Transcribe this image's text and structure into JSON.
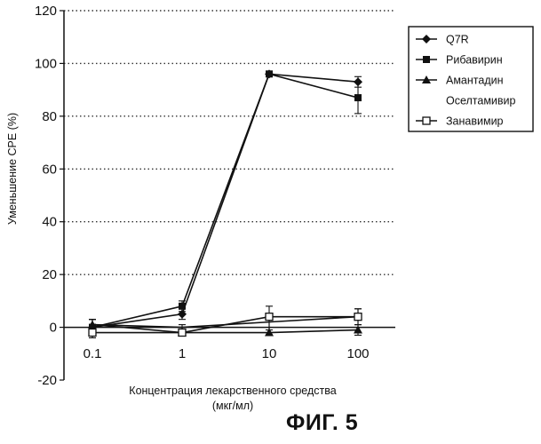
{
  "figure_label": "ФИГ. 5",
  "chart_data": {
    "type": "line",
    "xscale": "log",
    "categories": [
      "0.1",
      "1",
      "10",
      "100"
    ],
    "x": [
      0.1,
      1,
      10,
      100
    ],
    "xlabel": [
      "Концентрация лекарственного средства",
      "(мкг/мл)"
    ],
    "ylabel": "Уменьшение CPE (%)",
    "ylim": [
      -20,
      120
    ],
    "yticks": [
      -20,
      0,
      20,
      40,
      60,
      80,
      100,
      120
    ],
    "grid": "dotted horizontal",
    "legend_position": "right",
    "series": [
      {
        "name": "Q7R",
        "marker": "diamond",
        "color": "#111111",
        "values": [
          0,
          5,
          96,
          93
        ],
        "errors": [
          3,
          2,
          0,
          2
        ]
      },
      {
        "name": "Рибавирин",
        "marker": "square",
        "color": "#111111",
        "values": [
          0,
          8,
          96,
          87
        ],
        "errors": [
          3,
          2,
          0,
          6
        ]
      },
      {
        "name": "Амантадин",
        "marker": "triangle",
        "color": "#111111",
        "values": [
          1,
          -2,
          -2,
          -1
        ],
        "errors": [
          2,
          1,
          0,
          2
        ]
      },
      {
        "name": "Оселтамивир",
        "marker": "none",
        "color": "#111111",
        "values": [
          1,
          0,
          2,
          4
        ],
        "errors": [
          2,
          1,
          3,
          3
        ]
      },
      {
        "name": "Занавимир",
        "marker": "open-square",
        "color": "#111111",
        "values": [
          -2,
          -2,
          4,
          4
        ],
        "errors": [
          2,
          1,
          4,
          3
        ]
      }
    ]
  }
}
